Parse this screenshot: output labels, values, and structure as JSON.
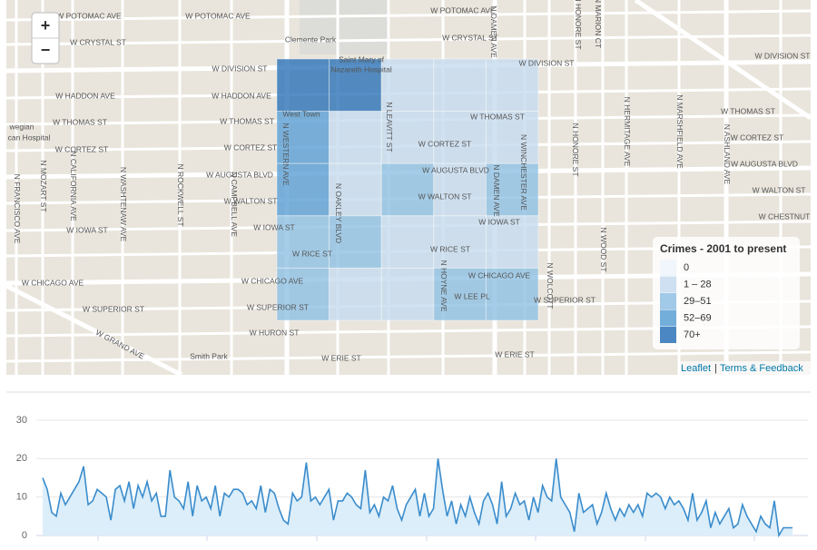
{
  "map": {
    "zoom_in": "+",
    "zoom_out": "−",
    "street_labels": [
      "W POTOMAC AVE",
      "W POTOMAC AVE",
      "W POTOMAC AVE",
      "W CRYSTAL ST",
      "W CRYSTAL ST",
      "Clemente Park",
      "Saint Mary of",
      "Nazareth Hospital",
      "W DIVISION ST",
      "W DIVISION ST",
      "W DIVISION ST",
      "W HADDON AVE",
      "W HADDON AVE",
      "W THOMAS ST",
      "W THOMAS ST",
      "W THOMAS ST",
      "W THOMAS ST",
      "West Town",
      "W CORTEZ ST",
      "W CORTEZ ST",
      "W CORTEZ ST",
      "W CORTEZ ST",
      "W AUGUSTA BLVD",
      "W AUGUSTA BLVD",
      "W AUGUSTA BLVD",
      "W WALTON ST",
      "W WALTON ST",
      "W WALTON ST",
      "W IOWA ST",
      "W IOWA ST",
      "W IOWA ST",
      "W CHESTNUT",
      "W RICE ST",
      "W RICE ST",
      "W CHICAGO AVE",
      "W CHICAGO AVE",
      "W CHICAGO AVE",
      "W SUPERIOR ST",
      "W SUPERIOR ST",
      "W LEE PL",
      "W SUPERIOR ST",
      "W HURON ST",
      "W ERIE ST",
      "W ERIE ST",
      "Smith Park",
      "W GRAND AVE",
      "N MOZART ST",
      "N CALIFORNIA AVE",
      "N FRANCISCO AVE",
      "N WASHTENAW AVE",
      "N ROCKWELL ST",
      "N CAMPBELL AVE",
      "N WESTERN AVE",
      "N OAKLEY BLVD",
      "N LEAVITT ST",
      "N HOYNE AVE",
      "N DAMEN AVE",
      "N DAMEN AVE",
      "N WINCHESTER AVE",
      "N WOLCOTT",
      "N HONORE ST",
      "N HERMITAGE AVE",
      "N MARSHFIELD AVE",
      "N ASHLAND AVE",
      "N WOOD ST",
      "N HONORE ST",
      "N MARION CT",
      "wegian",
      "can Hospital"
    ],
    "legend": {
      "title": "Crimes - 2001 to present",
      "classes": [
        "0",
        "1 – 28",
        "29–51",
        "52–69",
        "70+"
      ],
      "colors": [
        "#eef3fb",
        "#c6dbef",
        "#8fc1e3",
        "#5a9fd4",
        "#2c73b8"
      ]
    },
    "cells": [
      [
        4,
        4,
        1,
        1,
        1
      ],
      [
        3,
        1,
        1,
        1,
        1
      ],
      [
        3,
        1,
        2,
        1,
        2
      ],
      [
        2,
        2,
        1,
        1,
        1
      ],
      [
        2,
        1,
        1,
        2,
        2
      ]
    ],
    "attribution": [
      "Leaflet",
      "|",
      "Terms & Feedback"
    ]
  },
  "chart_data": {
    "type": "area",
    "color": "#3a8ccc",
    "fill": "#dceef9",
    "values": [
      15,
      12,
      6,
      5,
      11,
      8,
      10,
      12,
      14,
      18,
      8,
      9,
      12,
      11,
      10,
      4,
      12,
      13,
      9,
      14,
      7,
      13,
      10,
      14,
      9,
      11,
      5,
      5,
      17,
      10,
      9,
      7,
      14,
      5,
      13,
      9,
      10,
      7,
      13,
      5,
      11,
      10,
      12,
      12,
      11,
      8,
      9,
      7,
      13,
      6,
      12,
      11,
      7,
      4,
      3,
      11,
      9,
      10,
      19,
      9,
      10,
      8,
      10,
      12,
      4,
      9,
      9,
      11,
      10,
      8,
      7,
      17,
      6,
      8,
      5,
      10,
      9,
      13,
      7,
      4,
      8,
      10,
      12,
      5,
      11,
      5,
      7,
      20,
      12,
      5,
      9,
      3,
      8,
      5,
      10,
      6,
      3,
      9,
      11,
      8,
      3,
      14,
      5,
      7,
      11,
      8,
      9,
      4,
      10,
      6,
      13,
      10,
      9,
      20,
      10,
      8,
      6,
      1,
      11,
      6,
      7,
      8,
      3,
      6,
      11,
      7,
      4,
      7,
      5,
      8,
      6,
      8,
      5,
      11,
      10,
      11,
      10,
      7,
      10,
      8,
      9,
      7,
      4,
      11,
      4,
      6,
      9,
      2,
      6,
      3,
      5,
      7,
      2,
      3,
      8,
      5,
      3,
      1,
      5,
      3,
      2,
      9,
      0,
      2,
      2,
      2
    ],
    "ylim": [
      0,
      30
    ],
    "yticks": [
      0,
      10,
      20,
      30
    ],
    "grid": true
  }
}
